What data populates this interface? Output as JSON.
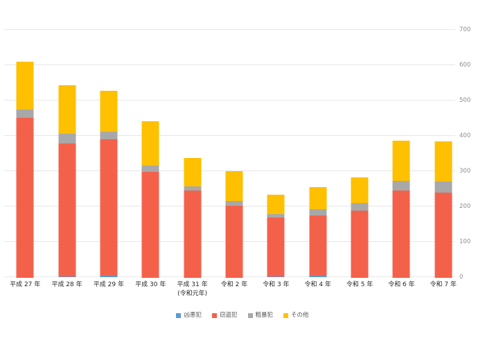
{
  "chart_data": {
    "type": "bar",
    "stacked": true,
    "title": "",
    "xlabel": "",
    "ylabel": "",
    "ylim": [
      0,
      700
    ],
    "yticks": [
      0,
      100,
      200,
      300,
      400,
      500,
      600,
      700
    ],
    "grid": true,
    "y_axis_side": "right",
    "legend_position": "bottom",
    "categories": [
      "平成27年",
      "平成28年",
      "平成29年",
      "平成30年",
      "平成31年(令和元年)",
      "令和2年",
      "令和3年",
      "令和4年",
      "令和5年",
      "令和6年",
      "令和7年"
    ],
    "category_labels": [
      [
        "平成 27 年"
      ],
      [
        "平成 28 年"
      ],
      [
        "平成 29 年"
      ],
      [
        "平成 30 年"
      ],
      [
        "平成 31 年",
        "(令和元年)"
      ],
      [
        "令和 2 年"
      ],
      [
        "令和 3 年"
      ],
      [
        "令和 4 年"
      ],
      [
        "令和 5 年"
      ],
      [
        "令和 6 年"
      ],
      [
        "令和 7 年"
      ]
    ],
    "series": [
      {
        "name": "凶悪犯",
        "color": "#5B9BD5",
        "values": [
          1,
          2,
          3,
          1,
          1,
          1,
          2,
          4,
          1,
          1,
          1
        ]
      },
      {
        "name": "窃盗犯",
        "color": "#F4614B",
        "values": [
          451,
          377,
          388,
          298,
          244,
          201,
          166,
          170,
          187,
          244,
          239
        ]
      },
      {
        "name": "粗暴犯",
        "color": "#A8A8A8",
        "values": [
          23,
          26,
          21,
          16,
          12,
          13,
          10,
          19,
          21,
          27,
          30
        ]
      },
      {
        "name": "その他",
        "color": "#FFC000",
        "values": [
          135,
          139,
          116,
          127,
          80,
          86,
          55,
          61,
          74,
          115,
          115
        ]
      }
    ],
    "totals": [
      610,
      544,
      528,
      442,
      337,
      301,
      233,
      254,
      283,
      387,
      385
    ],
    "colors": {
      "gridline": "#e7e7e7",
      "y_tick_text": "#8c8c8c",
      "x_tick_text": "#262626",
      "legend_text": "#595959",
      "background": "#ffffff"
    }
  }
}
